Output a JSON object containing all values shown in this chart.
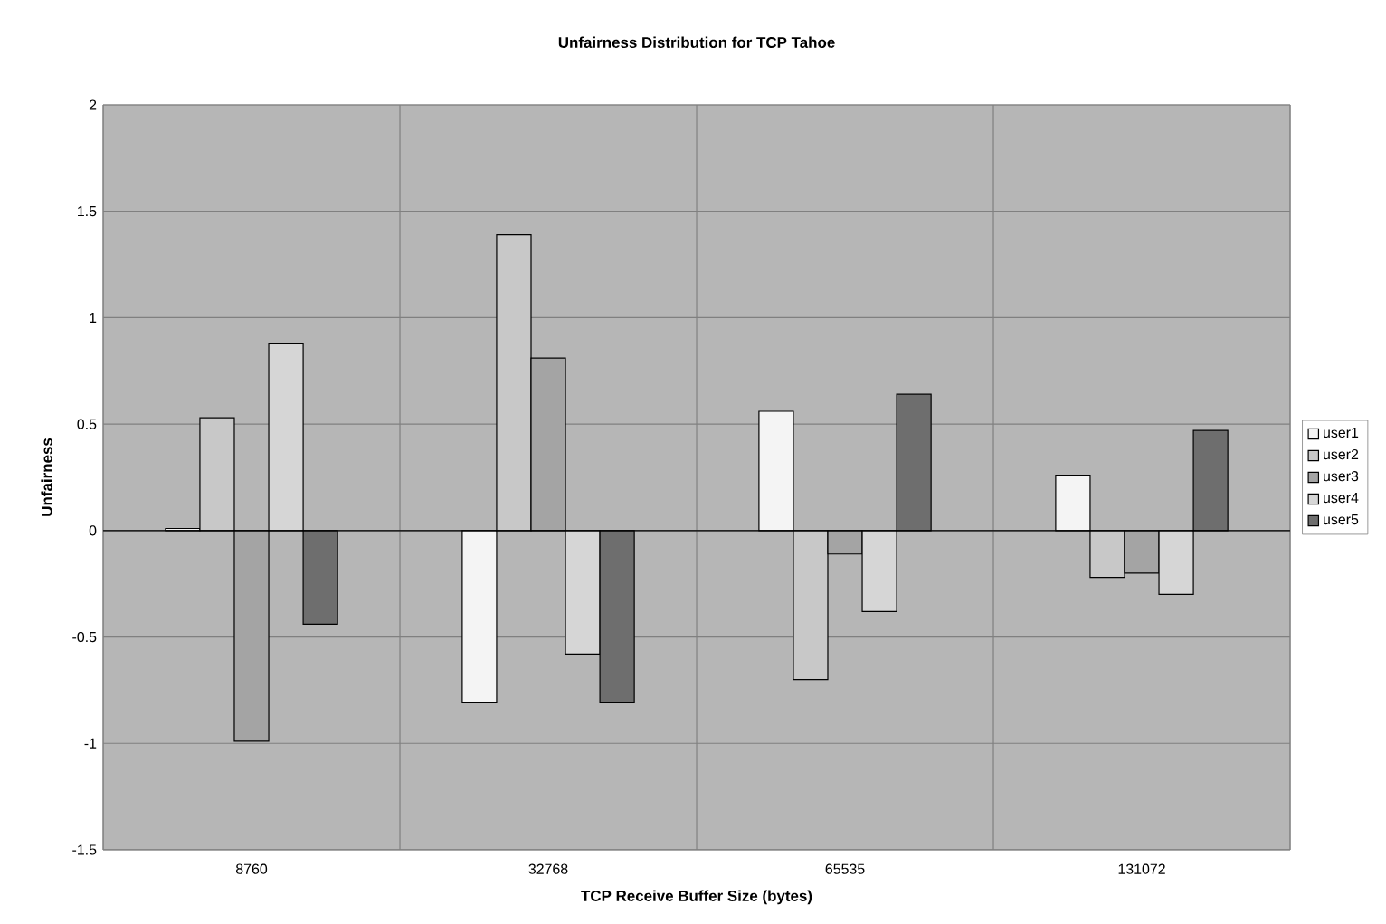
{
  "chart_data": {
    "type": "bar",
    "title": "Unfairness Distribution for TCP Tahoe",
    "xlabel": "TCP Receive Buffer Size (bytes)",
    "ylabel": "Unfairness",
    "categories": [
      "8760",
      "32768",
      "65535",
      "131072"
    ],
    "series": [
      {
        "name": "user1",
        "color": "#f4f4f4",
        "values": [
          0.01,
          -0.81,
          0.56,
          0.26
        ]
      },
      {
        "name": "user2",
        "color": "#c8c8c8",
        "values": [
          0.53,
          1.39,
          -0.7,
          -0.22
        ]
      },
      {
        "name": "user3",
        "color": "#a4a4a4",
        "values": [
          -0.99,
          0.81,
          -0.11,
          -0.2
        ]
      },
      {
        "name": "user4",
        "color": "#d6d6d6",
        "values": [
          0.88,
          -0.58,
          -0.38,
          -0.3
        ]
      },
      {
        "name": "user5",
        "color": "#6e6e6e",
        "values": [
          -0.44,
          -0.81,
          0.64,
          0.47
        ]
      }
    ],
    "ylim": [
      -1.5,
      2
    ],
    "yticks": [
      -1.5,
      -1,
      -0.5,
      0,
      0.5,
      1,
      1.5,
      2
    ],
    "grid": true,
    "legend": "right"
  }
}
